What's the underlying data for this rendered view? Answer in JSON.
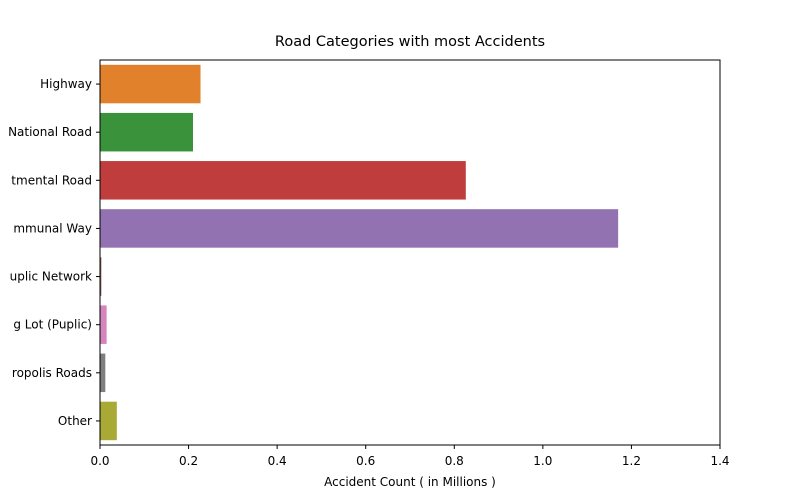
{
  "chart_data": {
    "type": "bar",
    "orientation": "horizontal",
    "title": "Road Categories with most Accidents",
    "xlabel": "Accident Count ( in Millions )",
    "ylabel": "",
    "xlim": [
      0,
      1.4
    ],
    "x_ticks": [
      "0.0",
      "0.2",
      "0.4",
      "0.6",
      "0.8",
      "1.0",
      "1.2",
      "1.4"
    ],
    "categories": [
      "Highway",
      "National Road",
      "tmental Road",
      "mmunal Way",
      "uplic Network",
      "g Lot (Puplic)",
      "ropolis Roads",
      "Other"
    ],
    "values": [
      0.227,
      0.21,
      0.826,
      1.17,
      0.003,
      0.015,
      0.012,
      0.038
    ],
    "colors": [
      "#e1812c",
      "#3a923a",
      "#c03d3e",
      "#9372b2",
      "#845b53",
      "#d684bd",
      "#7f7f7f",
      "#a9aa35"
    ],
    "grid": false,
    "legend": "none"
  }
}
